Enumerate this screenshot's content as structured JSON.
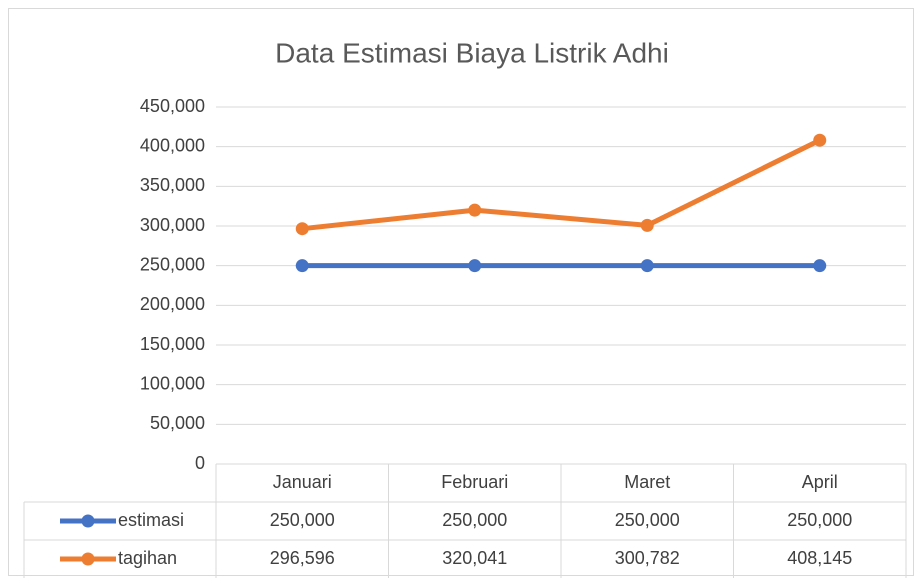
{
  "chart_data": {
    "type": "line",
    "title": "Data Estimasi Biaya Listrik Adhi",
    "categories": [
      "Januari",
      "Februari",
      "Maret",
      "April"
    ],
    "series": [
      {
        "name": "estimasi",
        "color": "#4472c4",
        "values": [
          250000,
          250000,
          250000,
          250000
        ],
        "value_labels": [
          "250,000",
          "250,000",
          "250,000",
          "250,000"
        ]
      },
      {
        "name": "tagihan",
        "color": "#ed7d31",
        "values": [
          296596,
          320041,
          300782,
          408145
        ],
        "value_labels": [
          "296,596",
          "320,041",
          "300,782",
          "408,145"
        ]
      }
    ],
    "ylim": [
      0,
      450000
    ],
    "yticks": [
      0,
      {
        "value": 50000,
        "label": "50,000"
      },
      {
        "value": 100000,
        "label": "100,000"
      },
      {
        "value": 150000,
        "label": "150,000"
      },
      {
        "value": 200000,
        "label": "200,000"
      },
      {
        "value": 250000,
        "label": "250,000"
      },
      {
        "value": 300000,
        "label": "300,000"
      },
      {
        "value": 350000,
        "label": "350,000"
      },
      {
        "value": 400000,
        "label": "400,000"
      },
      {
        "value": 450000,
        "label": "450,000"
      }
    ],
    "grid": true
  }
}
